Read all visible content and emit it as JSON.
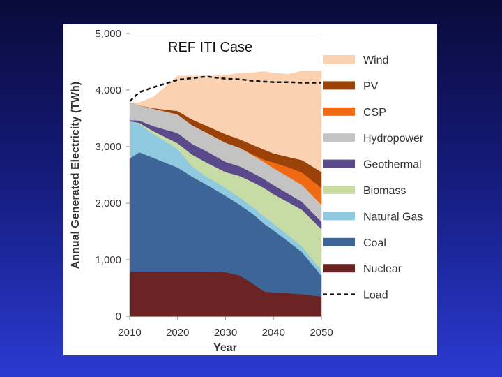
{
  "chart_data": {
    "type": "area",
    "stacked": true,
    "title": "REF ITI Case",
    "xlabel": "Year",
    "ylabel": "Annual Generated Electricity (TWh)",
    "xlim": [
      2010,
      2050
    ],
    "ylim": [
      0,
      5000
    ],
    "x_ticks": [
      "2010",
      "2020",
      "2030",
      "2040",
      "2050"
    ],
    "y_ticks": [
      "0",
      "1,000",
      "2,000",
      "3,000",
      "4,000",
      "5,000"
    ],
    "x": [
      2010,
      2012,
      2015,
      2020,
      2023,
      2026,
      2030,
      2033,
      2036,
      2038,
      2040,
      2043,
      2046,
      2050
    ],
    "series": [
      {
        "name": "Nuclear",
        "color": "#6b2323",
        "values": [
          790,
          790,
          790,
          790,
          790,
          790,
          780,
          720,
          560,
          440,
          420,
          410,
          390,
          350
        ]
      },
      {
        "name": "Coal",
        "color": "#3d6597",
        "values": [
          2000,
          2110,
          2010,
          1840,
          1680,
          1540,
          1350,
          1250,
          1230,
          1200,
          1100,
          920,
          740,
          370
        ]
      },
      {
        "name": "Natural Gas",
        "color": "#8fcae0",
        "values": [
          660,
          500,
          420,
          330,
          180,
          140,
          140,
          130,
          120,
          130,
          120,
          110,
          100,
          90
        ]
      },
      {
        "name": "Biomass",
        "color": "#c7dca4",
        "values": [
          0,
          20,
          50,
          100,
          210,
          250,
          280,
          380,
          450,
          500,
          520,
          580,
          650,
          730
        ]
      },
      {
        "name": "Geothermal",
        "color": "#5b4a8b",
        "values": [
          20,
          40,
          90,
          180,
          190,
          200,
          180,
          170,
          160,
          160,
          160,
          150,
          140,
          130
        ]
      },
      {
        "name": "Hydropower",
        "color": "#c3c3c3",
        "values": [
          310,
          270,
          310,
          330,
          330,
          330,
          340,
          330,
          310,
          300,
          300,
          300,
          300,
          300
        ]
      },
      {
        "name": "CSP",
        "color": "#f06a14",
        "values": [
          0,
          0,
          0,
          0,
          0,
          0,
          0,
          0,
          20,
          40,
          100,
          170,
          220,
          300
        ]
      },
      {
        "name": "PV",
        "color": "#9b4208",
        "values": [
          0,
          0,
          10,
          60,
          100,
          120,
          150,
          150,
          170,
          180,
          160,
          180,
          220,
          280
        ]
      },
      {
        "name": "Wind",
        "color": "#fbd2b1",
        "values": [
          0,
          50,
          200,
          620,
          770,
          880,
          1040,
          1170,
          1290,
          1380,
          1420,
          1460,
          1580,
          1790
        ]
      }
    ],
    "load": {
      "name": "Load",
      "values": [
        3800,
        3960,
        4050,
        4180,
        4210,
        4240,
        4200,
        4190,
        4160,
        4150,
        4140,
        4140,
        4130,
        4130
      ]
    },
    "legend": {
      "position": "right",
      "order": [
        "Wind",
        "PV",
        "CSP",
        "Hydropower",
        "Geothermal",
        "Biomass",
        "Natural Gas",
        "Coal",
        "Nuclear",
        "Load"
      ]
    }
  }
}
